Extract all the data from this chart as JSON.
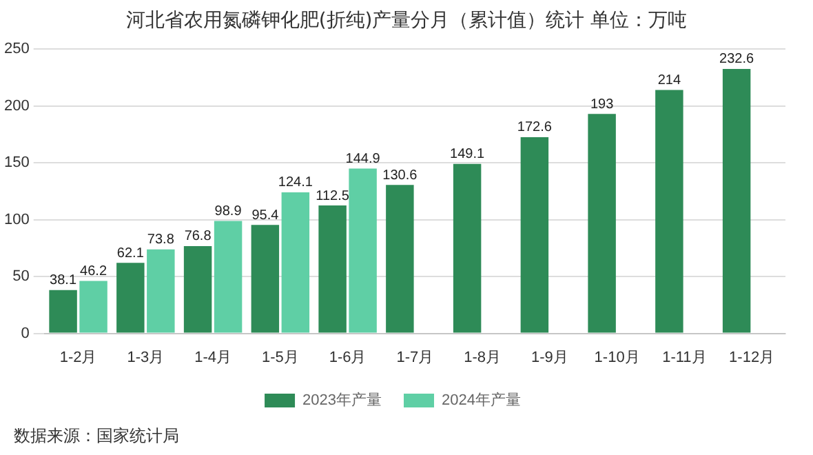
{
  "chart_data": {
    "type": "bar",
    "title": "河北省农用氮磷钾化肥(折纯)产量分月（累计值）统计  单位：万吨",
    "categories": [
      "1-2月",
      "1-3月",
      "1-4月",
      "1-5月",
      "1-6月",
      "1-7月",
      "1-8月",
      "1-9月",
      "1-10月",
      "1-11月",
      "1-12月"
    ],
    "series": [
      {
        "name": "2023年产量",
        "color": "#2e8b57",
        "values": [
          38.1,
          62.1,
          76.8,
          95.4,
          112.5,
          130.6,
          149.1,
          172.6,
          193,
          214,
          232.6
        ]
      },
      {
        "name": "2024年产量",
        "color": "#5fcfa5",
        "values": [
          46.2,
          73.8,
          98.9,
          124.1,
          144.9,
          null,
          null,
          null,
          null,
          null,
          null
        ]
      }
    ],
    "ylim": [
      0,
      250
    ],
    "yticks": [
      0,
      50,
      100,
      150,
      200,
      250
    ],
    "grid": "y",
    "legend": "bottom",
    "data_labels": true,
    "annotations": [
      "数据来源：国家统计局"
    ]
  }
}
